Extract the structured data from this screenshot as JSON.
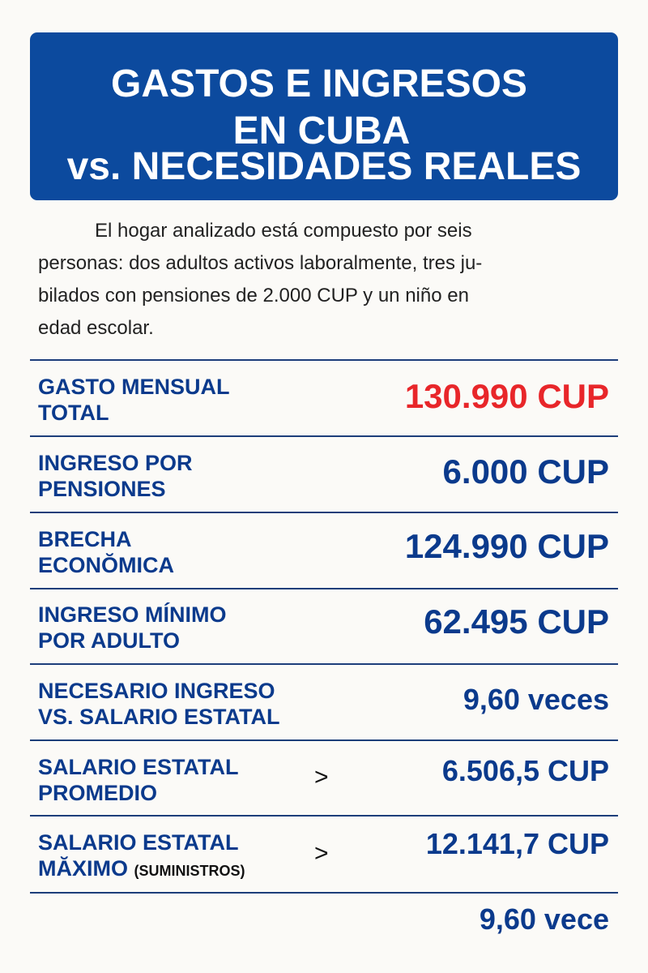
{
  "header": {
    "title_lines": [
      "GASTOS E INGRESOS",
      "EN CUBA",
      "vs. NECESIDADES REALES"
    ]
  },
  "intro": {
    "lines": [
      "El hogar analizado está compuesto por seis",
      "personas: dos adultos activos laboralmente, tres ju-",
      "bilados con pensiones de 2.000 CUP y un niño en",
      "edad escolar."
    ]
  },
  "rows": [
    {
      "label": [
        "GASTO MENSUAL",
        "TOTAL"
      ],
      "value": "130.990 CUP"
    },
    {
      "label": [
        "INGRESO POR",
        "PENSIONES"
      ],
      "value": "6.000 CUP"
    },
    {
      "label": [
        "BRECHA",
        "ECONŎMICA"
      ],
      "value": "124.990 CUP"
    },
    {
      "label": [
        "INGRESO MÍNIMO",
        "POR ADULTO"
      ],
      "value": "62.495 CUP"
    },
    {
      "label": [
        "NECESARIO INGRESO",
        "VS. SALARIO ESTATAL"
      ],
      "value": "9,60 veces"
    },
    {
      "label": [
        "SALARIO ESTATAL",
        "PROMEDIO"
      ],
      "symbol": ">",
      "value": "6.506,5 CUP"
    },
    {
      "label": [
        "SALARIO ESTATAL",
        "MĂXIMO"
      ],
      "label_note": "(SUMINISTROS)",
      "symbol": ">",
      "value": "12.141,7 CUP"
    }
  ],
  "footer_value": "9,60 vece",
  "colors": {
    "header_bg": "#0c4a9e",
    "navy": "#0b3a8c",
    "red": "#e8262a"
  }
}
